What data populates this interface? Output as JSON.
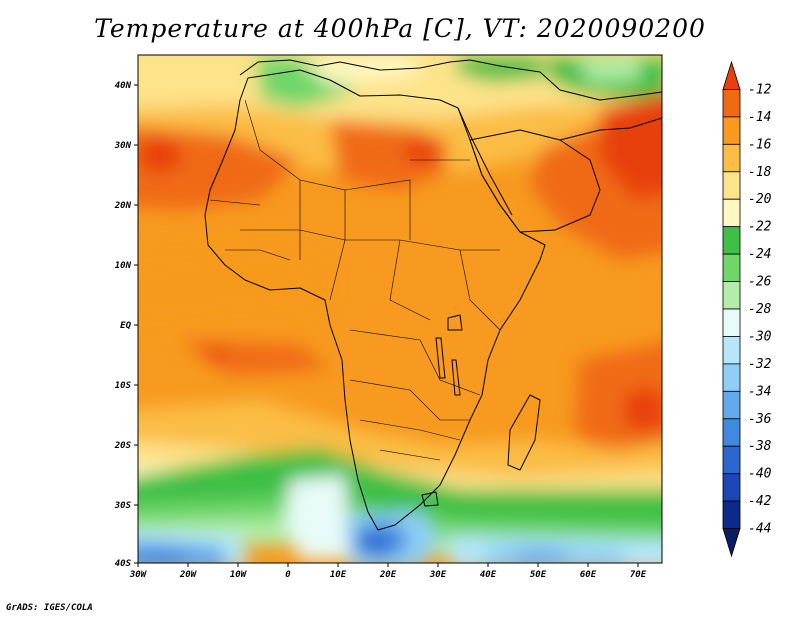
{
  "title": "Temperature at 400hPa [C], VT: 2020090200",
  "credit": "GrADS: IGES/COLA",
  "map": {
    "lon_labels": [
      "30W",
      "20W",
      "10W",
      "0",
      "10E",
      "20E",
      "30E",
      "40E",
      "50E",
      "60E",
      "70E"
    ],
    "lat_labels": [
      "40N",
      "30N",
      "20N",
      "10N",
      "EQ",
      "10S",
      "20S",
      "30S",
      "40S"
    ]
  },
  "colorbar": {
    "labels": [
      "-12",
      "-14",
      "-16",
      "-18",
      "-20",
      "-22",
      "-24",
      "-26",
      "-28",
      "-30",
      "-32",
      "-34",
      "-36",
      "-38",
      "-40",
      "-42",
      "-44"
    ],
    "colors": [
      "#e8400c",
      "#f06a12",
      "#f79a1f",
      "#fbbd45",
      "#fde38a",
      "#fff8c2",
      "#3ebf45",
      "#6fd66a",
      "#b2eea8",
      "#e8fbf8",
      "#b5e6fa",
      "#8fcff5",
      "#62aaec",
      "#4188e0",
      "#2c66cf",
      "#1b46b6",
      "#0c2a8c",
      "#0a1c66"
    ]
  }
}
